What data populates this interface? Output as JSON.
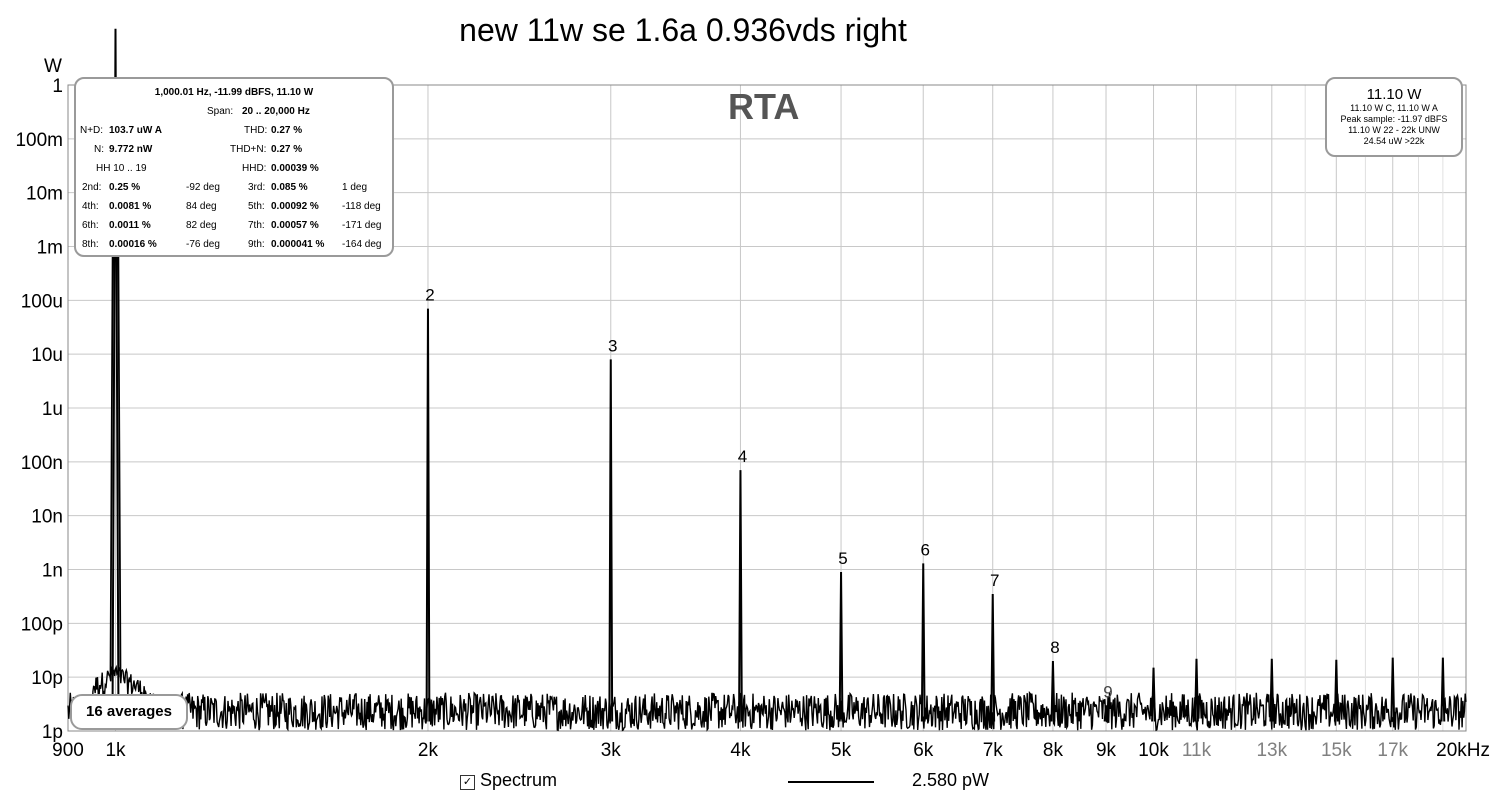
{
  "title": "new 11w se 1.6a 0.936vds right",
  "rta_label": "RTA",
  "y_unit": "W",
  "info": {
    "header": "1,000.01 Hz, -11.99 dBFS, 11.10 W",
    "span_label": "Span:",
    "span_value": "20 .. 20,000 Hz",
    "nd_label": "N+D:",
    "nd_value": "103.7 uW A",
    "thd_label": "THD:",
    "thd_value": "0.27 %",
    "n_label": "N:",
    "n_value": "9.772 nW",
    "thdn_label": "THD+N:",
    "thdn_value": "0.27 %",
    "hh_label": "HH 10 .. 19",
    "hhd_label": "HHD:",
    "hhd_value": "0.00039 %",
    "harmonics": [
      {
        "l1": "2nd:",
        "v1": "0.25 %",
        "p1": "-92 deg",
        "l2": "3rd:",
        "v2": "0.085 %",
        "p2": "1 deg"
      },
      {
        "l1": "4th:",
        "v1": "0.0081 %",
        "p1": "84 deg",
        "l2": "5th:",
        "v2": "0.00092 %",
        "p2": "-118 deg"
      },
      {
        "l1": "6th:",
        "v1": "0.0011 %",
        "p1": "82 deg",
        "l2": "7th:",
        "v2": "0.00057 %",
        "p2": "-171 deg"
      },
      {
        "l1": "8th:",
        "v1": "0.00016 %",
        "p1": "-76 deg",
        "l2": "9th:",
        "v2": "0.000041 %",
        "p2": "-164 deg"
      }
    ]
  },
  "power": {
    "value": "11.10 W",
    "line1": "11.10 W C, 11.10 W A",
    "line2": "Peak sample: -11.97 dBFS",
    "line3": "11.10 W 22 - 22k UNW",
    "line4": "24.54 uW >22k"
  },
  "averages": "16 averages",
  "legend": {
    "label": "Spectrum",
    "value": "2.580 pW"
  },
  "colors": {
    "trace": "#000000",
    "grid": "#c8c8c8",
    "box_border": "#9a9a9a",
    "gray_tick": "#808080"
  },
  "chart_data": {
    "type": "line",
    "x_scale": "log",
    "y_scale": "log",
    "xlim": [
      900,
      20000
    ],
    "ylim": [
      1e-12,
      1
    ],
    "ylabel": "W",
    "x_unit": "Hz",
    "y_ticks": [
      {
        "v": 1,
        "label": "1"
      },
      {
        "v": 0.1,
        "label": "100m"
      },
      {
        "v": 0.01,
        "label": "10m"
      },
      {
        "v": 0.001,
        "label": "1m"
      },
      {
        "v": 0.0001,
        "label": "100u"
      },
      {
        "v": 1e-05,
        "label": "10u"
      },
      {
        "v": 1e-06,
        "label": "1u"
      },
      {
        "v": 1e-07,
        "label": "100n"
      },
      {
        "v": 1e-08,
        "label": "10n"
      },
      {
        "v": 1e-09,
        "label": "1n"
      },
      {
        "v": 1e-10,
        "label": "100p"
      },
      {
        "v": 1e-11,
        "label": "10p"
      },
      {
        "v": 1e-12,
        "label": "1p"
      }
    ],
    "x_ticks": [
      {
        "v": 900,
        "label": "900",
        "gray": false
      },
      {
        "v": 1000,
        "label": "1k",
        "gray": false
      },
      {
        "v": 2000,
        "label": "2k",
        "gray": false
      },
      {
        "v": 3000,
        "label": "3k",
        "gray": false
      },
      {
        "v": 4000,
        "label": "4k",
        "gray": false
      },
      {
        "v": 5000,
        "label": "5k",
        "gray": false
      },
      {
        "v": 6000,
        "label": "6k",
        "gray": false
      },
      {
        "v": 7000,
        "label": "7k",
        "gray": false
      },
      {
        "v": 8000,
        "label": "8k",
        "gray": false
      },
      {
        "v": 9000,
        "label": "9k",
        "gray": false
      },
      {
        "v": 10000,
        "label": "10k",
        "gray": false
      },
      {
        "v": 11000,
        "label": "11k",
        "gray": true
      },
      {
        "v": 13000,
        "label": "13k",
        "gray": true
      },
      {
        "v": 15000,
        "label": "15k",
        "gray": true
      },
      {
        "v": 17000,
        "label": "17k",
        "gray": true
      },
      {
        "v": 20000,
        "label": "20kHz",
        "gray": false
      }
    ],
    "fundamental": {
      "freq": 1000,
      "power": 11.1
    },
    "harmonic_peaks": [
      {
        "n": "2",
        "freq": 2000,
        "power": 7e-05
      },
      {
        "n": "3",
        "freq": 3000,
        "power": 8e-06
      },
      {
        "n": "4",
        "freq": 4000,
        "power": 7e-08
      },
      {
        "n": "5",
        "freq": 5000,
        "power": 9e-10
      },
      {
        "n": "6",
        "freq": 6000,
        "power": 1.3e-09
      },
      {
        "n": "7",
        "freq": 7000,
        "power": 3.5e-10
      },
      {
        "n": "8",
        "freq": 8000,
        "power": 2e-11
      },
      {
        "n": "9",
        "freq": 9000,
        "power": 3e-12
      }
    ],
    "other_peaks": [
      {
        "freq": 10000,
        "power": 1.5e-11
      },
      {
        "freq": 11000,
        "power": 2.2e-11
      },
      {
        "freq": 13000,
        "power": 2.2e-11
      },
      {
        "freq": 15000,
        "power": 2.1e-11
      },
      {
        "freq": 17000,
        "power": 2.3e-11
      },
      {
        "freq": 19000,
        "power": 2.3e-11
      }
    ],
    "noise_floor": 2.5e-12
  }
}
